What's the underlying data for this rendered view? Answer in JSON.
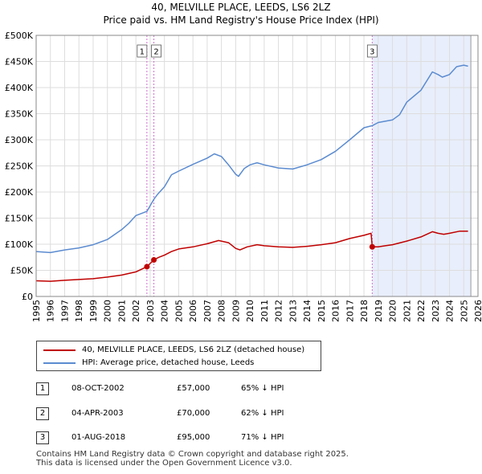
{
  "header": {
    "title": "40, MELVILLE PLACE, LEEDS, LS6 2LZ",
    "subtitle": "Price paid vs. HM Land Registry's House Price Index (HPI)"
  },
  "colors": {
    "property": "#c00000",
    "hpi": "#5b8bd0",
    "vline": "#d070d0",
    "shade": "#e8eefb",
    "grid": "#dddddd",
    "endline": "#999999"
  },
  "chart_data": {
    "type": "line",
    "title": "40, MELVILLE PLACE, LEEDS, LS6 2LZ",
    "subtitle": "Price paid vs. HM Land Registry's House Price Index (HPI)",
    "x_ticks": [
      "1995",
      "1996",
      "1997",
      "1998",
      "1999",
      "2000",
      "2001",
      "2002",
      "2003",
      "2004",
      "2005",
      "2006",
      "2007",
      "2008",
      "2009",
      "2010",
      "2011",
      "2012",
      "2013",
      "2014",
      "2015",
      "2016",
      "2017",
      "2018",
      "2019",
      "2020",
      "2021",
      "2022",
      "2023",
      "2024",
      "2025",
      "2026"
    ],
    "y_ticks": [
      "£0",
      "£50K",
      "£100K",
      "£150K",
      "£200K",
      "£250K",
      "£300K",
      "£350K",
      "£400K",
      "£450K",
      "£500K"
    ],
    "xlim": [
      1995,
      2026
    ],
    "ylim": [
      0,
      500000
    ],
    "grid": true,
    "shaded_region": [
      2018.58,
      2025.5
    ],
    "series": [
      {
        "name": "40, MELVILLE PLACE, LEEDS, LS6 2LZ (detached house)",
        "color": "#c00000",
        "points": [
          [
            1995,
            30000
          ],
          [
            1996,
            29000
          ],
          [
            1997,
            31000
          ],
          [
            1998,
            32500
          ],
          [
            1999,
            34000
          ],
          [
            2000,
            37000
          ],
          [
            2001,
            41000
          ],
          [
            2002,
            47000
          ],
          [
            2002.77,
            57000
          ],
          [
            2003.26,
            70000
          ],
          [
            2003.6,
            75000
          ],
          [
            2004,
            79000
          ],
          [
            2004.5,
            86000
          ],
          [
            2005,
            91000
          ],
          [
            2006,
            95000
          ],
          [
            2007,
            101000
          ],
          [
            2007.8,
            107000
          ],
          [
            2008.5,
            103000
          ],
          [
            2009,
            92000
          ],
          [
            2009.3,
            89000
          ],
          [
            2009.8,
            95000
          ],
          [
            2010.5,
            99000
          ],
          [
            2011,
            97000
          ],
          [
            2012,
            95000
          ],
          [
            2013,
            94000
          ],
          [
            2014,
            96000
          ],
          [
            2015,
            99000
          ],
          [
            2016,
            103000
          ],
          [
            2017,
            111000
          ],
          [
            2018,
            117000
          ],
          [
            2018.5,
            121000
          ],
          [
            2018.58,
            95000
          ],
          [
            2019,
            95000
          ],
          [
            2019.5,
            97000
          ],
          [
            2020,
            99000
          ],
          [
            2021,
            106000
          ],
          [
            2022,
            114000
          ],
          [
            2022.8,
            124000
          ],
          [
            2023.2,
            121000
          ],
          [
            2023.6,
            119000
          ],
          [
            2024,
            121000
          ],
          [
            2024.7,
            125000
          ],
          [
            2025.3,
            125000
          ]
        ]
      },
      {
        "name": "HPI: Average price, detached house, Leeds",
        "color": "#5b8bd0",
        "points": [
          [
            1995,
            86000
          ],
          [
            1996,
            84000
          ],
          [
            1997,
            89000
          ],
          [
            1998,
            93000
          ],
          [
            1999,
            99000
          ],
          [
            2000,
            109000
          ],
          [
            2001,
            128000
          ],
          [
            2001.5,
            140000
          ],
          [
            2002,
            155000
          ],
          [
            2002.77,
            163000
          ],
          [
            2003.26,
            186000
          ],
          [
            2003.5,
            195000
          ],
          [
            2004,
            210000
          ],
          [
            2004.5,
            233000
          ],
          [
            2005,
            240000
          ],
          [
            2006,
            253000
          ],
          [
            2007,
            265000
          ],
          [
            2007.5,
            273000
          ],
          [
            2008,
            268000
          ],
          [
            2008.5,
            252000
          ],
          [
            2009,
            234000
          ],
          [
            2009.2,
            230000
          ],
          [
            2009.6,
            245000
          ],
          [
            2010,
            252000
          ],
          [
            2010.5,
            256000
          ],
          [
            2011,
            252000
          ],
          [
            2012,
            246000
          ],
          [
            2013,
            244000
          ],
          [
            2014,
            252000
          ],
          [
            2015,
            262000
          ],
          [
            2016,
            278000
          ],
          [
            2017,
            300000
          ],
          [
            2018,
            323000
          ],
          [
            2018.58,
            327000
          ],
          [
            2019,
            333000
          ],
          [
            2020,
            338000
          ],
          [
            2020.5,
            348000
          ],
          [
            2021,
            372000
          ],
          [
            2022,
            395000
          ],
          [
            2022.8,
            430000
          ],
          [
            2023.2,
            425000
          ],
          [
            2023.5,
            420000
          ],
          [
            2024,
            425000
          ],
          [
            2024.5,
            440000
          ],
          [
            2025,
            443000
          ],
          [
            2025.3,
            441000
          ]
        ]
      }
    ],
    "annotations": [
      {
        "label": "1",
        "x": 2002.77,
        "y": 57000
      },
      {
        "label": "2",
        "x": 2003.26,
        "y": 70000
      },
      {
        "label": "3",
        "x": 2018.58,
        "y": 95000
      }
    ]
  },
  "legend": {
    "items": [
      {
        "label": "40, MELVILLE PLACE, LEEDS, LS6 2LZ (detached house)"
      },
      {
        "label": "HPI: Average price, detached house, Leeds"
      }
    ]
  },
  "transactions": [
    {
      "num": "1",
      "date": "08-OCT-2002",
      "price": "£57,000",
      "hpi": "65% ↓ HPI"
    },
    {
      "num": "2",
      "date": "04-APR-2003",
      "price": "£70,000",
      "hpi": "62% ↓ HPI"
    },
    {
      "num": "3",
      "date": "01-AUG-2018",
      "price": "£95,000",
      "hpi": "71% ↓ HPI"
    }
  ],
  "footer": {
    "line1": "Contains HM Land Registry data © Crown copyright and database right 2025.",
    "line2": "This data is licensed under the Open Government Licence v3.0."
  }
}
